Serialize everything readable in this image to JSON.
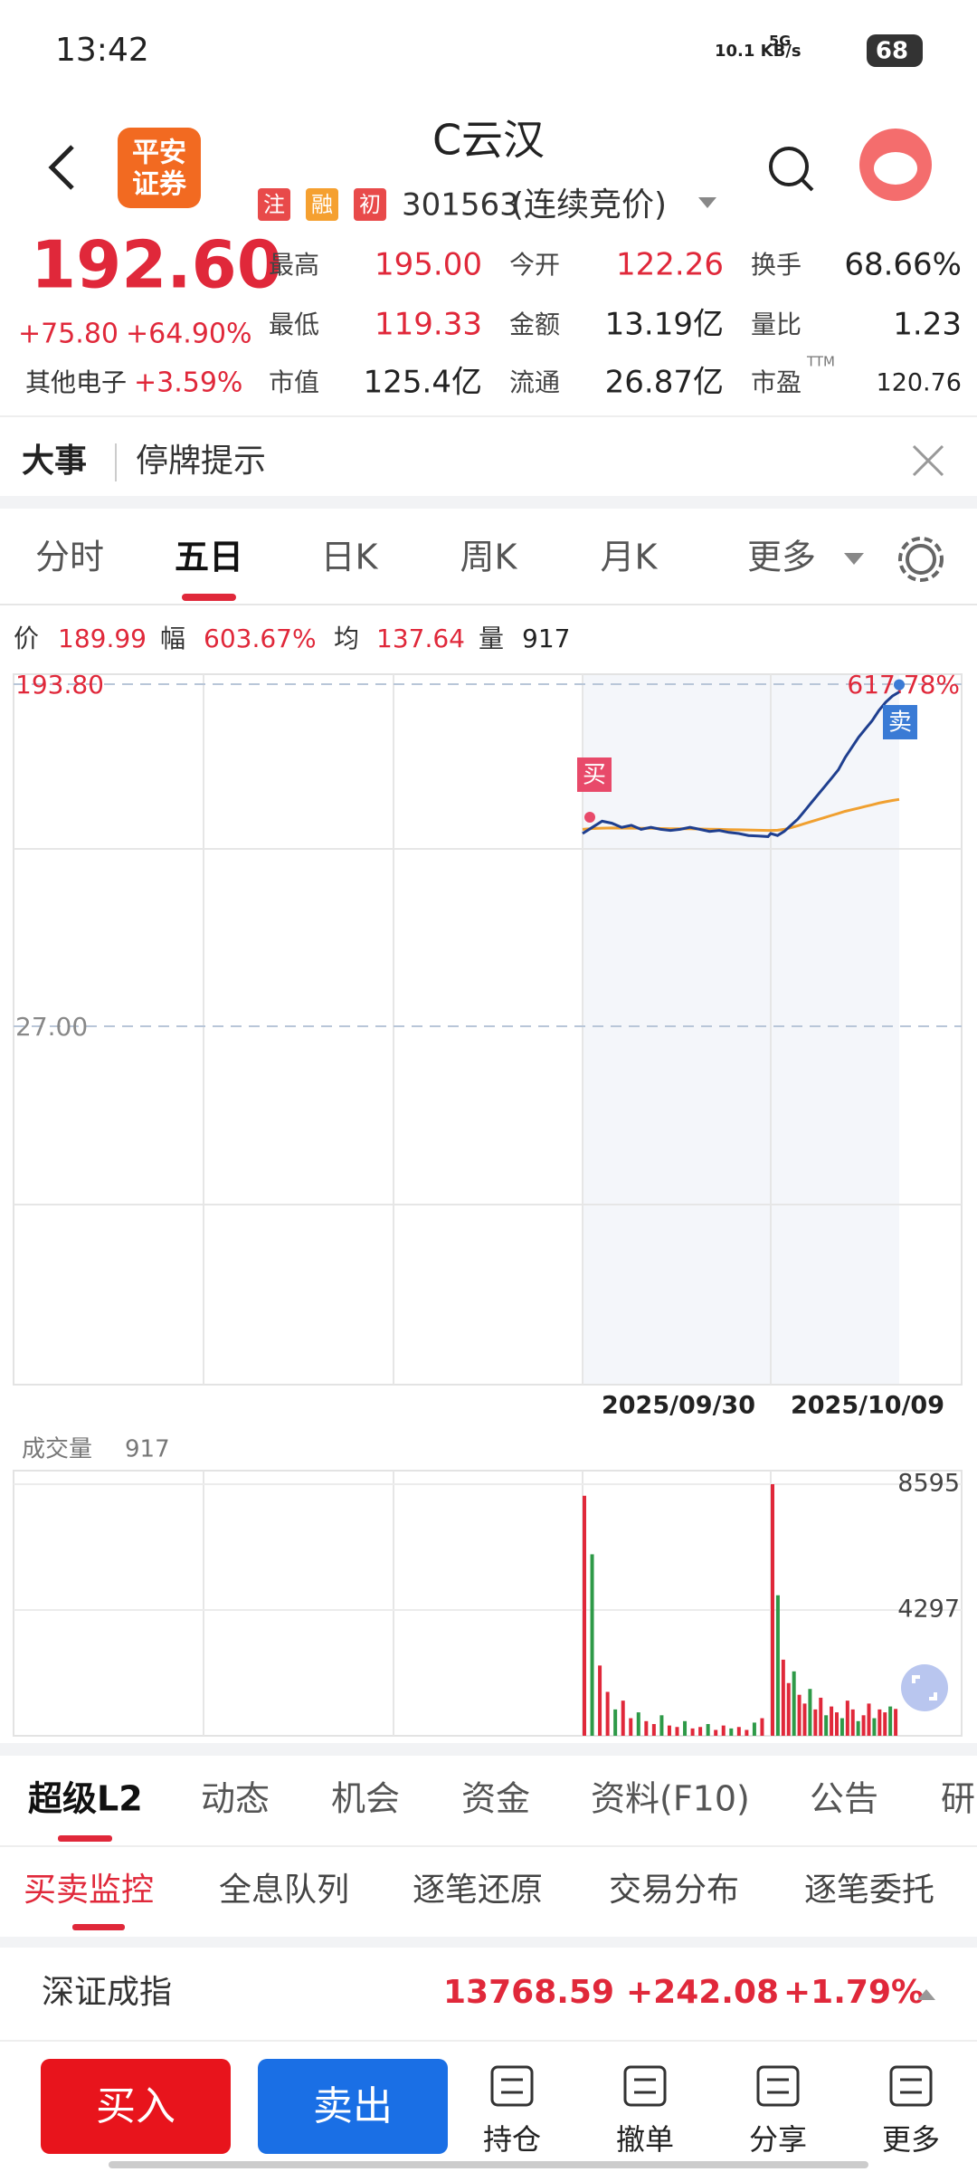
{
  "status": {
    "time": "13:42",
    "net": "10.1 KB/s",
    "signal": "5G",
    "battery": "68"
  },
  "header": {
    "logo_top": "平安",
    "logo_bottom": "证券",
    "title": "C云汉",
    "tags": [
      "注",
      "融",
      "初"
    ],
    "code": "301563",
    "mode": "(连续竞价)"
  },
  "quote": {
    "price": "192.60",
    "change": "+75.80",
    "change_pct": "+64.90%",
    "sector": "其他电子",
    "sector_pct": "+3.59%",
    "stats": [
      {
        "label": "最高",
        "value": "195.00",
        "color": "#e0283a"
      },
      {
        "label": "今开",
        "value": "122.26",
        "color": "#e0283a"
      },
      {
        "label": "换手",
        "value": "68.66%",
        "color": "#222222"
      },
      {
        "label": "最低",
        "value": "119.33",
        "color": "#e0283a"
      },
      {
        "label": "金额",
        "value": "13.19亿",
        "color": "#222222"
      },
      {
        "label": "量比",
        "value": "1.23",
        "color": "#222222"
      },
      {
        "label": "市值",
        "value": "125.4亿",
        "color": "#222222"
      },
      {
        "label": "流通",
        "value": "26.87亿",
        "color": "#222222"
      },
      {
        "label": "市盈",
        "value": "120.76",
        "color": "#222222"
      }
    ],
    "ttm": "TTM"
  },
  "notice": {
    "label": "大事",
    "text": "停牌提示"
  },
  "tabs": {
    "items": [
      "分时",
      "五日",
      "日K",
      "周K",
      "月K",
      "更多"
    ],
    "active": 1
  },
  "info": [
    {
      "label": "价",
      "value": "189.99",
      "color": "#e0283a"
    },
    {
      "label": "幅",
      "value": "603.67%",
      "color": "#e0283a"
    },
    {
      "label": "均",
      "value": "137.64",
      "color": "#e0283a"
    },
    {
      "label": "量",
      "value": "917",
      "color": "#222222"
    }
  ],
  "chart": {
    "type": "line",
    "yticks": [
      {
        "value": 193.8,
        "label": "193.80"
      },
      {
        "value": 27,
        "label": "27.00"
      }
    ],
    "top_pct": "617.78%",
    "dates": [
      "2025/09/30",
      "2025/10/09"
    ],
    "buy": "买",
    "sell": "卖",
    "price_color": "#1f3f8f",
    "avg_color": "#f0a030",
    "day_points": 20,
    "price": [
      121,
      124,
      127,
      126,
      124,
      125,
      123,
      124,
      123,
      122.5,
      123,
      124,
      123,
      122,
      122.5,
      121.5,
      121,
      120,
      119.8,
      119.5,
      121,
      120,
      122,
      125,
      128,
      132,
      136,
      140,
      144,
      148,
      152,
      158,
      163,
      168,
      172,
      176,
      181,
      185,
      188,
      189.99
    ],
    "avg": [
      123,
      123.4,
      123.6,
      123.7,
      123.6,
      123.6,
      123.5,
      123.5,
      123.4,
      123.3,
      123.3,
      123.3,
      123.2,
      123.1,
      123,
      122.9,
      122.8,
      122.7,
      122.6,
      122.5,
      122.5,
      122.6,
      123,
      123.8,
      124.8,
      125.8,
      126.8,
      127.8,
      128.8,
      129.8,
      130.8,
      131.8,
      132.6,
      133.4,
      134.2,
      135,
      135.8,
      136.5,
      137.1,
      137.64
    ]
  },
  "volume": {
    "label": "成交量",
    "value": "917",
    "yticks": [
      8595,
      4297
    ],
    "up_color": "#e0283a",
    "down_color": "#2e9a48",
    "day_points": 24,
    "values": [
      8200,
      6200,
      2400,
      1500,
      900,
      1200,
      600,
      800,
      500,
      400,
      700,
      350,
      300,
      500,
      250,
      300,
      400,
      200,
      350,
      250,
      300,
      200,
      450,
      600,
      8595,
      4800,
      2600,
      1800,
      2200,
      1400,
      1100,
      1600,
      900,
      1300,
      700,
      1000,
      800,
      600,
      1200,
      900,
      500,
      700,
      1100,
      600,
      900,
      800,
      1000,
      917
    ]
  },
  "sections": {
    "items": [
      "超级L2",
      "动态",
      "机会",
      "资金",
      "资料(F10)",
      "公告",
      "研"
    ],
    "active": 0
  },
  "subtabs": {
    "items": [
      "买卖监控",
      "全息队列",
      "逐笔还原",
      "交易分布",
      "逐笔委托"
    ],
    "active": 0
  },
  "index": {
    "name": "深证成指",
    "value": "13768.59",
    "change": "+242.08",
    "pct": "+1.79%"
  },
  "actions": {
    "buy": "买入",
    "sell": "卖出",
    "tools": [
      "持仓",
      "撤单",
      "分享",
      "更多"
    ]
  }
}
